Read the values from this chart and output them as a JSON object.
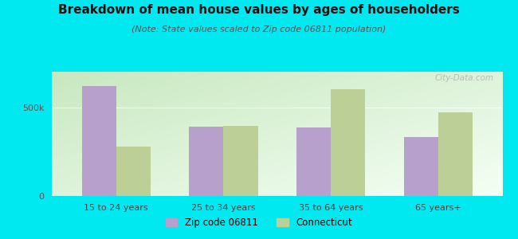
{
  "title": "Breakdown of mean house values by ages of householders",
  "subtitle": "(Note: State values scaled to Zip code 06811 population)",
  "categories": [
    "15 to 24 years",
    "25 to 34 years",
    "35 to 64 years",
    "65 years+"
  ],
  "zip_values": [
    620000,
    390000,
    385000,
    330000
  ],
  "state_values": [
    280000,
    395000,
    600000,
    470000
  ],
  "zip_color": "#b8a0cc",
  "state_color": "#bccf96",
  "background_outer": "#00e8f0",
  "background_inner_grad_start": "#c8e8c0",
  "background_inner_grad_end": "#f5fff5",
  "ylim": [
    0,
    700000
  ],
  "yticks": [
    0,
    500000
  ],
  "ytick_labels": [
    "0",
    "500k"
  ],
  "bar_width": 0.32,
  "legend_zip": "Zip code 06811",
  "legend_state": "Connecticut",
  "watermark": "City-Data.com",
  "title_fontsize": 11,
  "subtitle_fontsize": 8,
  "tick_fontsize": 8
}
